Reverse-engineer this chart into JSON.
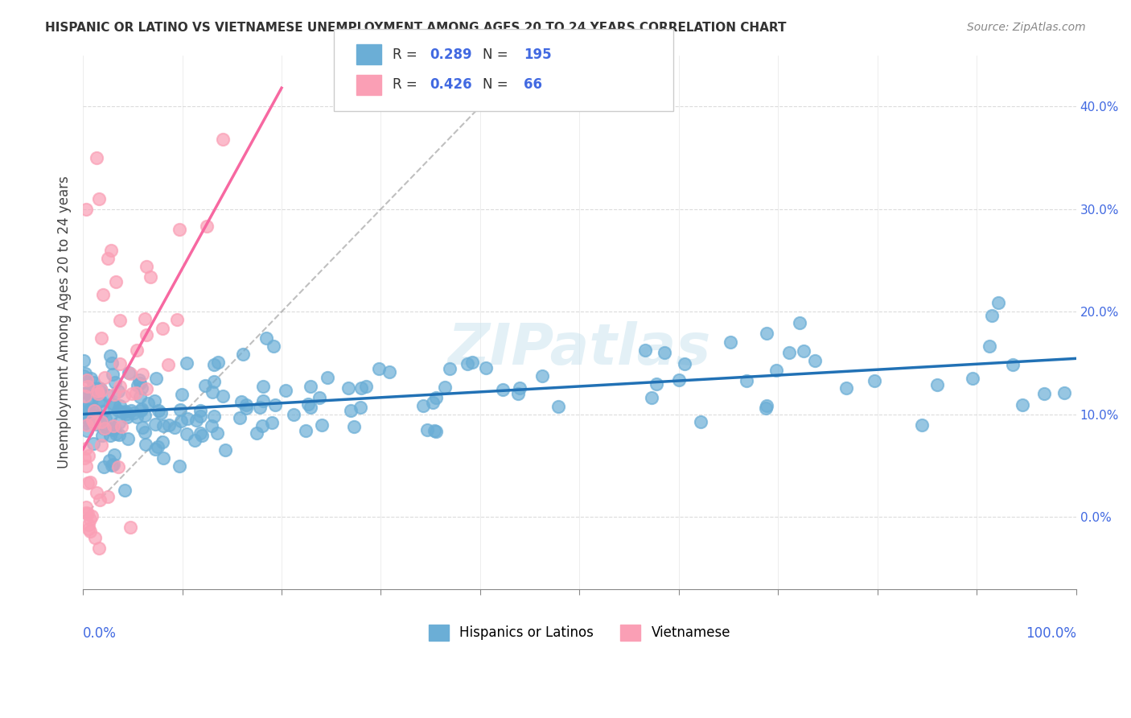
{
  "title": "HISPANIC OR LATINO VS VIETNAMESE UNEMPLOYMENT AMONG AGES 20 TO 24 YEARS CORRELATION CHART",
  "source": "Source: ZipAtlas.com",
  "ylabel": "Unemployment Among Ages 20 to 24 years",
  "legend_label1": "Hispanics or Latinos",
  "legend_label2": "Vietnamese",
  "R1": 0.289,
  "N1": 195,
  "R2": 0.426,
  "N2": 66,
  "blue_color": "#6baed6",
  "pink_color": "#fa9fb5",
  "blue_line_color": "#2171b5",
  "pink_line_color": "#f768a1",
  "xlim": [
    0.0,
    1.0
  ],
  "ylim": [
    -0.07,
    0.45
  ],
  "yticks": [
    0.0,
    0.1,
    0.2,
    0.3,
    0.4
  ],
  "ytick_labels": [
    "0.0%",
    "10.0%",
    "20.0%",
    "30.0%",
    "40.0%"
  ]
}
